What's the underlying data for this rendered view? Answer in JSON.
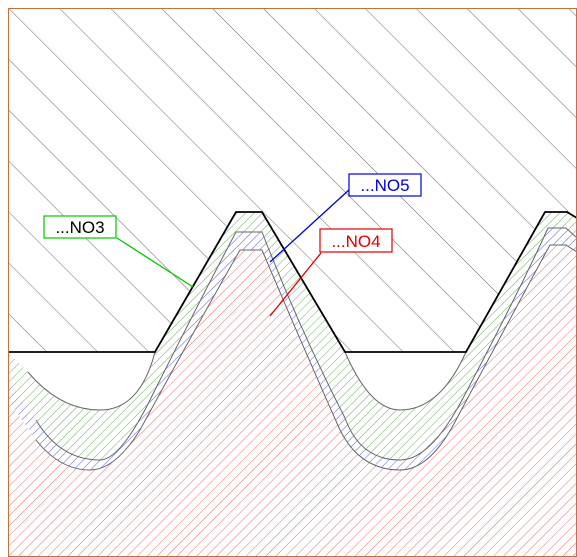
{
  "diagram": {
    "labels": [
      {
        "id": "NO3",
        "text": "...NO3",
        "color": "#00c800"
      },
      {
        "id": "NO5",
        "text": "...NO5",
        "color": "#0000d8"
      },
      {
        "id": "NO4",
        "text": "...NO4",
        "color": "#e00000"
      }
    ],
    "colors": {
      "frame": "#c8703a",
      "outline": "#000000",
      "inner_curve": "#666666",
      "hatch_body": "#444444",
      "hatch_green": "#4a9a3a",
      "hatch_blue": "#3a3ad8",
      "hatch_red": "#e04848",
      "label_background": "#ffffff"
    }
  }
}
